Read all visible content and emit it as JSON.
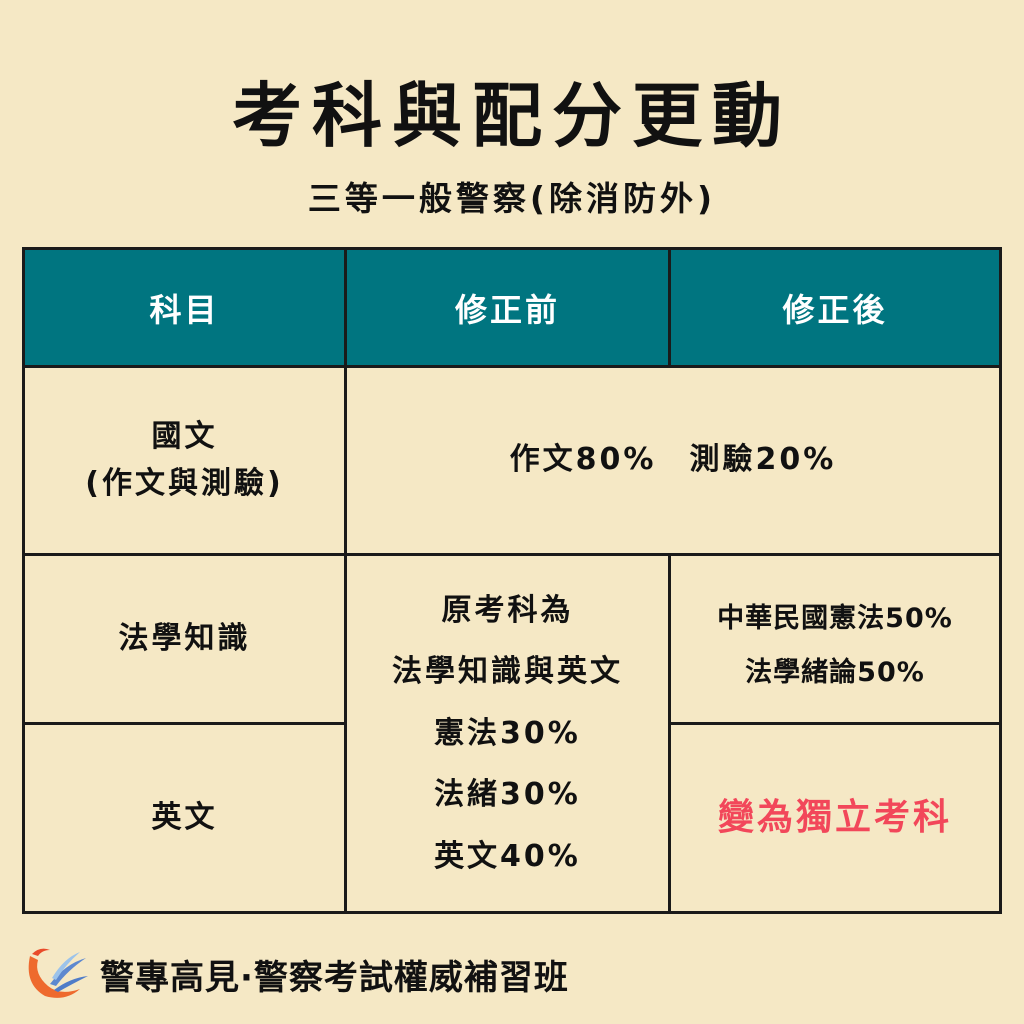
{
  "title": "考科與配分更動",
  "subtitle": "三等一般警察(除消防外)",
  "colors": {
    "header": "#007580",
    "highlight": "#F2475A",
    "background": "#F5E8C5"
  },
  "table": {
    "headers": [
      "科目",
      "修正前",
      "修正後"
    ],
    "rows": [
      {
        "subject_line1": "國文",
        "subject_line2": "(作文與測驗)",
        "merged": "作文80%　測驗20%"
      },
      {
        "subject": "法學知識",
        "before": [
          "原考科為",
          "法學知識與英文",
          "憲法30%",
          "法緒30%",
          "英文40%"
        ],
        "after": [
          "中華民國憲法50%",
          "法學緒論50%"
        ]
      },
      {
        "subject": "英文",
        "after": "變為獨立考科"
      }
    ]
  },
  "footer": {
    "logo": "phoenix-logo",
    "text": "警專高見·警察考試權威補習班"
  }
}
